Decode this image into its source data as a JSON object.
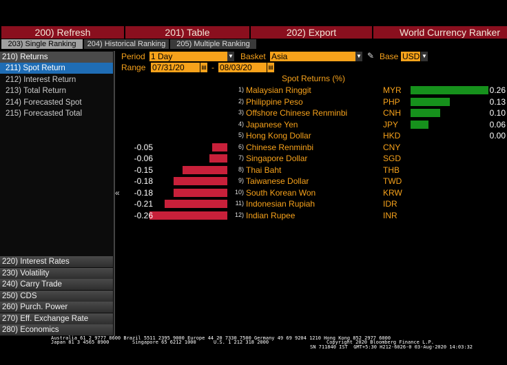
{
  "toolbar": {
    "buttons": [
      "200) Refresh",
      "201) Table",
      "202) Export"
    ],
    "title": "World Currency Ranker"
  },
  "tabs": [
    "203) Single Ranking",
    "204) Historical Ranking",
    "205) Multiple Ranking"
  ],
  "menu": {
    "header": "210) Returns",
    "items": [
      "211) Spot Return",
      "212) Interest Return",
      "213) Total Return",
      "214) Forecasted Spot",
      "215) Forecasted Total"
    ],
    "sections": [
      "220) Interest Rates",
      "230) Volatility",
      "240) Carry Trade",
      "250) CDS",
      "260) Purch. Power",
      "270) Eff. Exchange Rate",
      "280) Economics"
    ]
  },
  "controls": {
    "period_label": "Period",
    "period": "1 Day",
    "basket_label": "Basket",
    "basket": "Asia",
    "base_label": "Base",
    "base": "USD",
    "range_label": "Range",
    "range_start": "07/31/20",
    "range_separator": "-",
    "range_end": "08/03/20"
  },
  "collapse_icon": "«",
  "chart_data": {
    "type": "bar",
    "title": "Spot Returns (%)",
    "ranks": [
      "1)",
      "2)",
      "3)",
      "4)",
      "5)",
      "6)",
      "7)",
      "8)",
      "9)",
      "10)",
      "11)",
      "12)"
    ],
    "categories": [
      "Malaysian Ringgit",
      "Philippine Peso",
      "Offshore Chinese Renminbi",
      "Japanese Yen",
      "Hong Kong Dollar",
      "Chinese Renminbi",
      "Singapore Dollar",
      "Thai Baht",
      "Taiwanese Dollar",
      "South Korean Won",
      "Indonesian Rupiah",
      "Indian Rupee"
    ],
    "codes": [
      "MYR",
      "PHP",
      "CNH",
      "JPY",
      "HKD",
      "CNY",
      "SGD",
      "THB",
      "TWD",
      "KRW",
      "IDR",
      "INR"
    ],
    "values": [
      0.26,
      0.13,
      0.1,
      0.06,
      0.0,
      -0.05,
      -0.06,
      -0.15,
      -0.18,
      -0.18,
      -0.21,
      -0.26
    ],
    "value_labels": [
      "0.26",
      "0.13",
      "0.10",
      "0.06",
      "0.00",
      "-0.05",
      "-0.06",
      "-0.15",
      "-0.18",
      "-0.18",
      "-0.21",
      "-0.26"
    ],
    "positive_color": "#16911c",
    "negative_color": "#c8203a"
  },
  "footer": {
    "line1": "Australia 61 2 9777 8600 Brazil 5511 2395 9000 Europe 44 20 7330 7500 Germany 49 69 9204 1210 Hong Kong 852 2977 6000",
    "line2": "Japan 81 3 4565 8900        Singapore 65 6212 1000      U.S. 1 212 318 2000",
    "copyright": "Copyright 2020 Bloomberg Finance L.P.",
    "status": "SN 711840 IST  GMT+5:30 H212-6026-0 03-Aug-2020 14:03:32"
  }
}
